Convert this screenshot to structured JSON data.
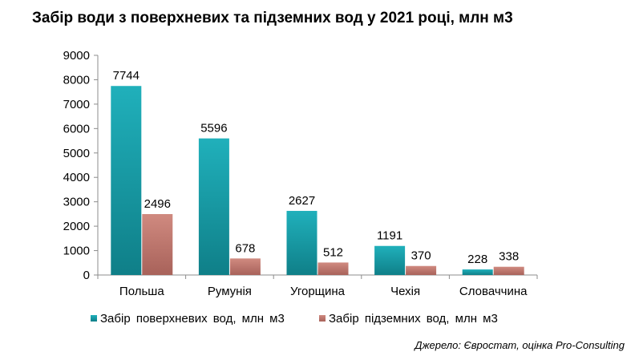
{
  "chart_data": {
    "type": "bar",
    "title": "Забір води з поверхневих та підземних вод у 2021 році, млн м3",
    "categories": [
      "Польша",
      "Румунія",
      "Угорщина",
      "Чехія",
      "Словаччина"
    ],
    "series": [
      {
        "name": "Забір  поверхневих  вод, млн м3",
        "values": [
          7744,
          5596,
          2627,
          1191,
          228
        ],
        "color": "#1aa3ae"
      },
      {
        "name": "Забір  підземних  вод, млн м3",
        "values": [
          2496,
          678,
          512,
          370,
          338
        ],
        "color": "#c47c72"
      }
    ],
    "ylim": [
      0,
      9000
    ],
    "yticks": [
      0,
      1000,
      2000,
      3000,
      4000,
      5000,
      6000,
      7000,
      8000,
      9000
    ],
    "grid": false,
    "legend_position": "bottom",
    "source": "Джерело: Євростат, оцінка Pro-Consulting"
  }
}
